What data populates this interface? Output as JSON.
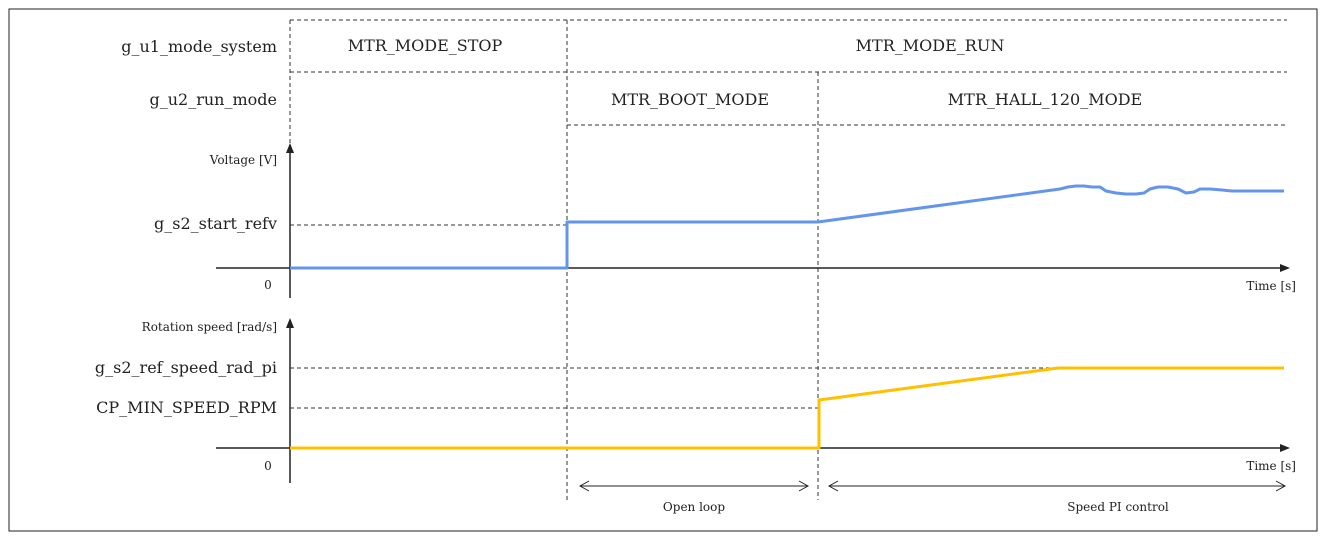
{
  "rows": {
    "mode_system_label": "g_u1_mode_system",
    "run_mode_label": "g_u2_run_mode"
  },
  "states": {
    "stop": "MTR_MODE_STOP",
    "run": "MTR_MODE_RUN",
    "boot": "MTR_BOOT_MODE",
    "hall": "MTR_HALL_120_MODE"
  },
  "voltage_plot": {
    "ylabel": "Voltage [V]",
    "level_label": "g_s2_start_refv",
    "zero": "0",
    "xlabel": "Time [s]",
    "color": "#6495ED"
  },
  "speed_plot": {
    "ylabel": "Rotation speed [rad/s]",
    "ref_label": "g_s2_ref_speed_rad_pi",
    "min_label": "CP_MIN_SPEED_RPM",
    "zero": "0",
    "xlabel": "Time [s]",
    "color": "#FFC000"
  },
  "spans": {
    "open_loop": "Open loop",
    "speed_pi": "Speed PI control"
  }
}
